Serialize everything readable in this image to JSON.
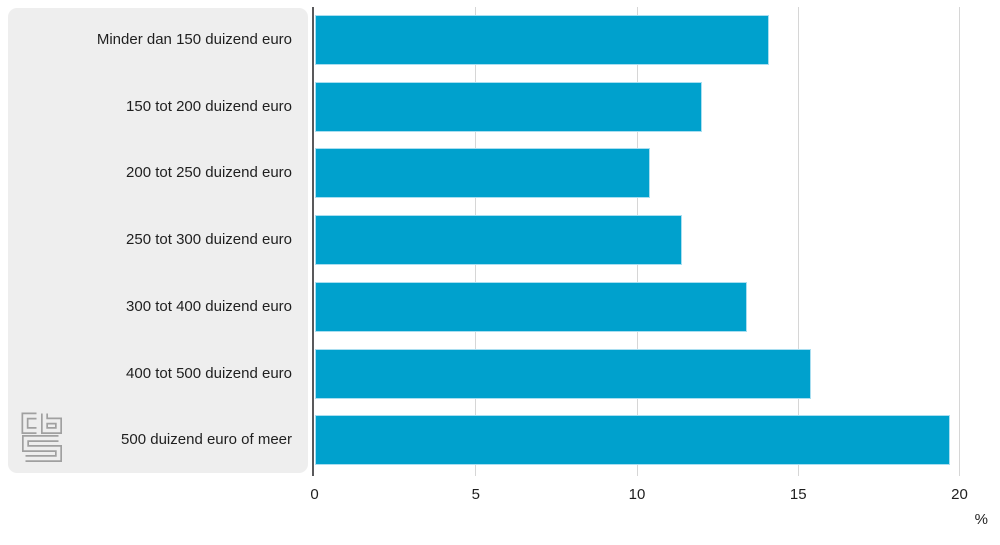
{
  "chart_data": {
    "type": "bar",
    "orientation": "horizontal",
    "title": "",
    "categories": [
      "Minder dan 150 duizend euro",
      "150 tot 200 duizend euro",
      "200 tot 250 duizend euro",
      "250 tot 300 duizend euro",
      "300 tot 400 duizend euro",
      "400 tot 500 duizend euro",
      "500 duizend euro of meer"
    ],
    "values": [
      14.1,
      12.0,
      10.4,
      11.4,
      13.4,
      15.4,
      19.7
    ],
    "xlabel": "%",
    "xlim": [
      0,
      20
    ],
    "xticks": [
      0,
      5,
      10,
      15,
      20
    ],
    "xtick_labels": [
      "0",
      "5",
      "10",
      "15",
      "20"
    ],
    "grid": true,
    "legend_position": "none"
  },
  "branding": {
    "logo": "cbs-logo"
  },
  "colors": {
    "bar": "#00a1cd",
    "bar_edge": "#a9def0",
    "panel_bg": "#eeeeee",
    "axis_line": "#59595b",
    "gridline": "#d6d6d6",
    "text": "#1f1f1f",
    "logo": "#a0a0a0"
  }
}
